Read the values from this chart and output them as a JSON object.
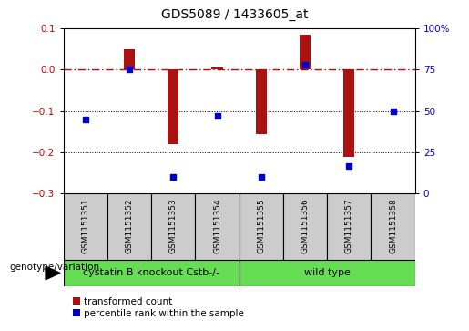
{
  "title": "GDS5089 / 1433605_at",
  "samples": [
    "GSM1151351",
    "GSM1151352",
    "GSM1151353",
    "GSM1151354",
    "GSM1151355",
    "GSM1151356",
    "GSM1151357",
    "GSM1151358"
  ],
  "transformed_count": [
    0.0,
    0.05,
    -0.18,
    0.005,
    -0.155,
    0.085,
    -0.21,
    0.0
  ],
  "percentile_rank": [
    45,
    75,
    10,
    47,
    10,
    78,
    17,
    50
  ],
  "group1_label": "cystatin B knockout Cstb-/-",
  "group2_label": "wild type",
  "group_color": "#66dd55",
  "bar_color": "#aa1111",
  "dot_color": "#0000cc",
  "ref_line_color": "#cc0000",
  "ylim_left": [
    -0.3,
    0.1
  ],
  "ylim_right": [
    0,
    100
  ],
  "yticks_left": [
    0.1,
    0.0,
    -0.1,
    -0.2,
    -0.3
  ],
  "yticks_right": [
    100,
    75,
    50,
    25,
    0
  ],
  "legend_tc": "transformed count",
  "legend_pr": "percentile rank within the sample",
  "sample_box_color": "#cccccc",
  "bar_width": 0.25,
  "title_fontsize": 10,
  "tick_fontsize": 7.5,
  "label_fontsize": 6.5,
  "geno_fontsize": 8,
  "legend_fontsize": 7.5
}
